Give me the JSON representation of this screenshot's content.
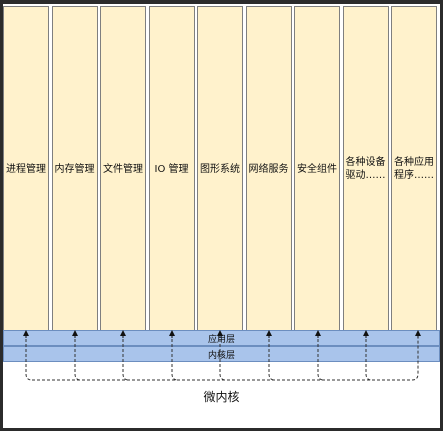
{
  "modules": [
    {
      "label": "进程管理"
    },
    {
      "label": "内存管理"
    },
    {
      "label": "文件管理"
    },
    {
      "label": "IO 管理"
    },
    {
      "label": "图形系统"
    },
    {
      "label": "网络服务"
    },
    {
      "label": "安全组件"
    },
    {
      "label": "各种设备驱动……"
    },
    {
      "label": "各种应用程序……"
    }
  ],
  "layers": {
    "app_layer": "应用层",
    "kernel_layer": "内核层"
  },
  "microkernel": "微内核",
  "colors": {
    "module_fill": "#fff2cc",
    "layer_fill": "#a9c4eb",
    "border": "#7f7f7f"
  }
}
